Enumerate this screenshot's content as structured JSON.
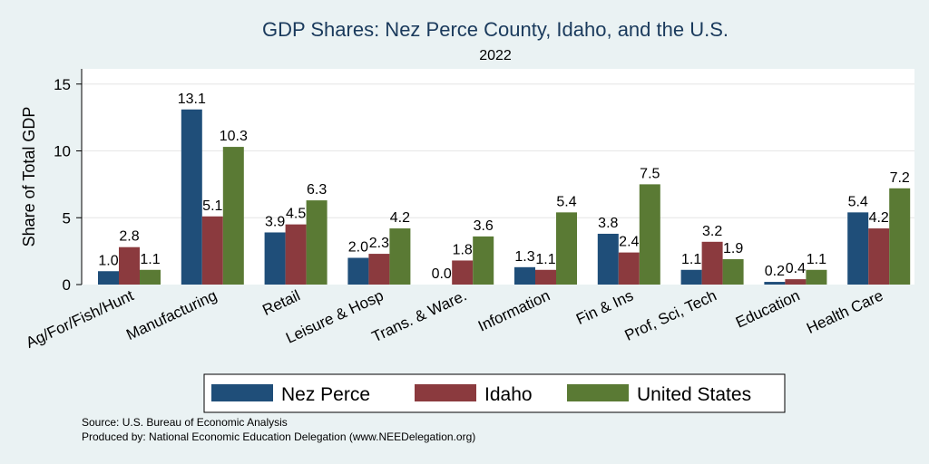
{
  "chart_data": {
    "type": "bar",
    "title": "GDP Shares: Nez Perce County, Idaho, and the U.S.",
    "subtitle": "2022",
    "ylabel": "Share of Total GDP",
    "ylim": [
      0,
      16
    ],
    "yticks": [
      "0",
      "5",
      "10",
      "15"
    ],
    "grid": true,
    "legend_position": "bottom",
    "categories": [
      "Ag/For/Fish/Hunt",
      "Manufacturing",
      "Retail",
      "Leisure & Hosp",
      "Trans. & Ware.",
      "Information",
      "Fin & Ins",
      "Prof, Sci, Tech",
      "Education",
      "Health Care"
    ],
    "series": [
      {
        "name": "Nez Perce",
        "color": "#1f4e79",
        "values": [
          1.0,
          13.1,
          3.9,
          2.0,
          0.0,
          1.3,
          3.8,
          1.1,
          0.2,
          5.4
        ],
        "labels": [
          "1.0",
          "13.1",
          "3.9",
          "2.0",
          "0.0",
          "1.3",
          "3.8",
          "1.1",
          "0.2",
          "5.4"
        ]
      },
      {
        "name": "Idaho",
        "color": "#8b3a3e",
        "values": [
          2.8,
          5.1,
          4.5,
          2.3,
          1.8,
          1.1,
          2.4,
          3.2,
          0.4,
          4.2
        ],
        "labels": [
          "2.8",
          "5.1",
          "4.5",
          "2.3",
          "1.8",
          "1.1",
          "2.4",
          "3.2",
          "0.4",
          "4.2"
        ]
      },
      {
        "name": "United States",
        "color": "#5a7a34",
        "values": [
          1.1,
          10.3,
          6.3,
          4.2,
          3.6,
          5.4,
          7.5,
          1.9,
          1.1,
          7.2
        ],
        "labels": [
          "1.1",
          "10.3",
          "6.3",
          "4.2",
          "3.6",
          "5.4",
          "7.5",
          "1.9",
          "1.1",
          "7.2"
        ]
      }
    ]
  },
  "footer": {
    "source": "Source: U.S. Bureau of Economic Analysis",
    "produced_by": "Produced by: National Economic Education Delegation (www.NEEDelegation.org)"
  }
}
